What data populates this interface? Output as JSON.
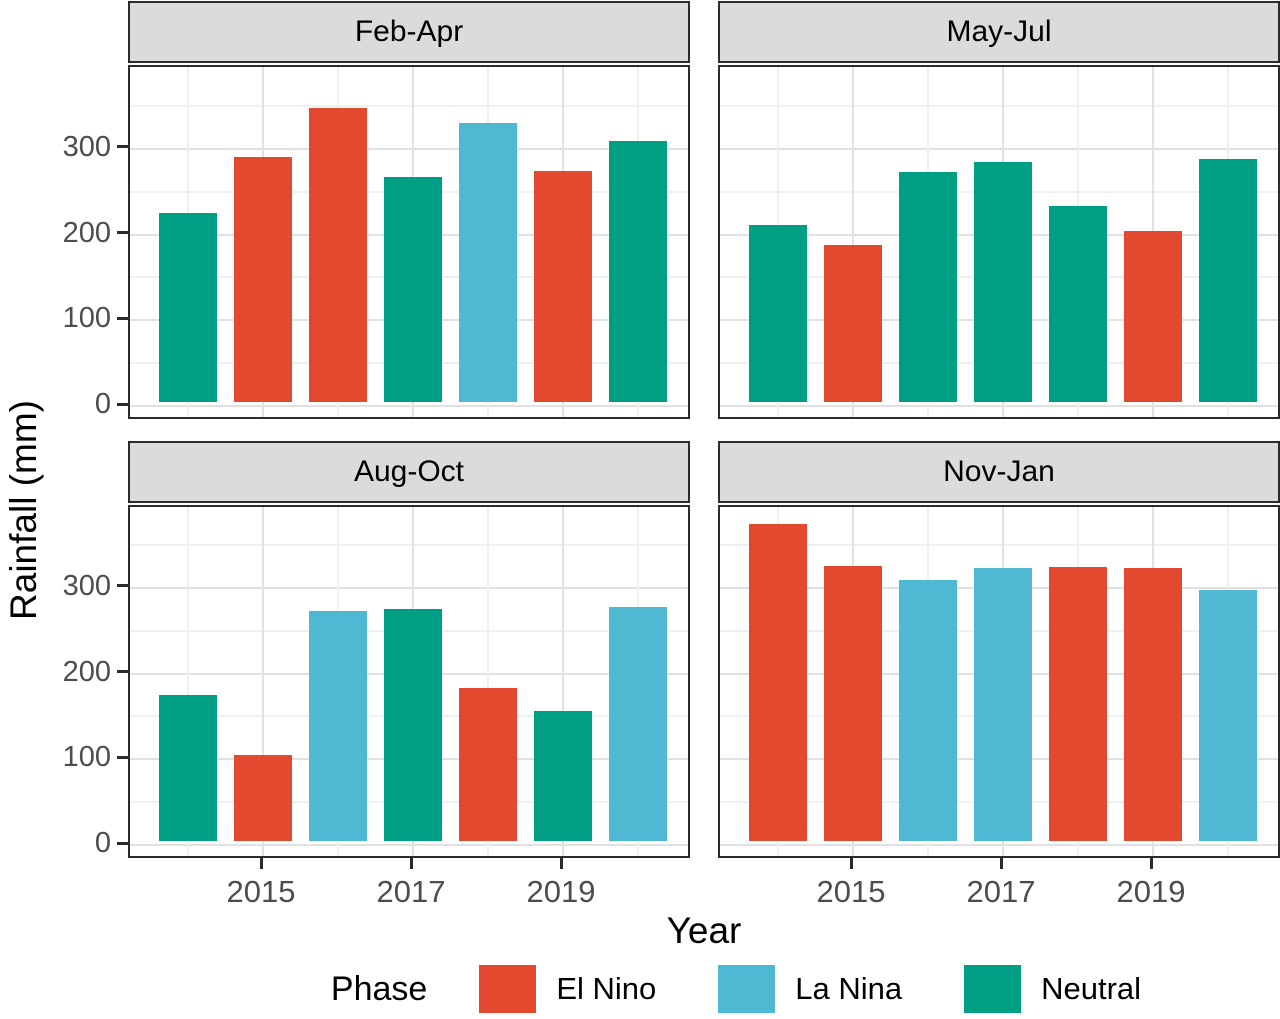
{
  "chart_data": {
    "type": "bar",
    "title": "",
    "xlabel": "Year",
    "ylabel": "Rainfall (mm)",
    "x": [
      2014,
      2015,
      2016,
      2017,
      2018,
      2019,
      2020
    ],
    "x_tick_labels": [
      "2015",
      "2017",
      "2019"
    ],
    "y_ticks": [
      0,
      100,
      200,
      300
    ],
    "y_minor_ticks": [
      50,
      150,
      250,
      350
    ],
    "ylim": [
      0,
      392
    ],
    "grid": "on",
    "legend_position": "bottom",
    "facets": [
      {
        "label": "Feb-Apr",
        "years": [
          2014,
          2015,
          2016,
          2017,
          2018,
          2019,
          2020
        ],
        "phases": [
          "Neutral",
          "El Nino",
          "El Nino",
          "Neutral",
          "La Nina",
          "El Nino",
          "Neutral"
        ],
        "values": [
          220,
          286,
          343,
          263,
          325,
          270,
          304
        ]
      },
      {
        "label": "May-Jul",
        "years": [
          2014,
          2015,
          2016,
          2017,
          2018,
          2019,
          2020
        ],
        "phases": [
          "Neutral",
          "El Nino",
          "Neutral",
          "Neutral",
          "Neutral",
          "El Nino",
          "Neutral"
        ],
        "values": [
          207,
          183,
          268,
          280,
          229,
          200,
          284
        ]
      },
      {
        "label": "Aug-Oct",
        "years": [
          2014,
          2015,
          2016,
          2017,
          2018,
          2019,
          2020
        ],
        "phases": [
          "Neutral",
          "El Nino",
          "La Nina",
          "Neutral",
          "El Nino",
          "Neutral",
          "La Nina"
        ],
        "values": [
          170,
          100,
          268,
          271,
          178,
          152,
          273
        ]
      },
      {
        "label": "Nov-Jan",
        "years": [
          2014,
          2015,
          2016,
          2017,
          2018,
          2019,
          2020
        ],
        "phases": [
          "El Nino",
          "El Nino",
          "La Nina",
          "La Nina",
          "El Nino",
          "El Nino",
          "La Nina"
        ],
        "values": [
          370,
          321,
          304,
          319,
          320,
          319,
          293
        ]
      }
    ]
  },
  "axes": {
    "y_title": "Rainfall (mm)",
    "x_title": "Year"
  },
  "palette": {
    "El Nino": "#e2492f",
    "La Nina": "#4fb9d3",
    "Neutral": "#009e82"
  },
  "legend": {
    "title": "Phase",
    "items": [
      {
        "label": "El Nino",
        "color": "#e2492f"
      },
      {
        "label": "La Nina",
        "color": "#4fb9d3"
      },
      {
        "label": "Neutral",
        "color": "#009e82"
      }
    ]
  },
  "colors": {
    "strip_background": "#dbdbdb",
    "panel_border": "#2b2b2b",
    "grid_major": "#e1e1e1",
    "grid_minor": "#f0f0f0",
    "tick_label": "#4d4d4d"
  }
}
